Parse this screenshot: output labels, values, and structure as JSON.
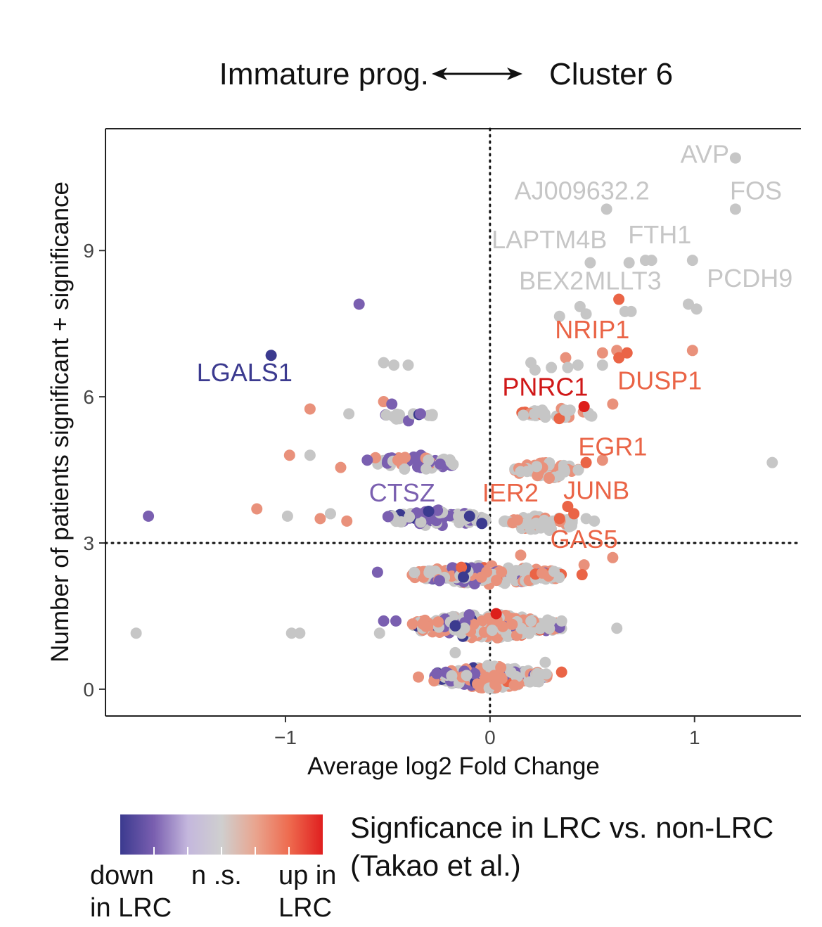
{
  "chart_data": {
    "type": "scatter",
    "header": {
      "left_label": "Immature prog.",
      "right_label": "Cluster 6"
    },
    "xlabel": "Average log2 Fold Change",
    "ylabel": "Number of patients significant + significance",
    "xlim": [
      -1.88,
      1.52
    ],
    "ylim": [
      -0.55,
      11.5
    ],
    "xticks": [
      {
        "value": -1,
        "label": "−1"
      },
      {
        "value": 0,
        "label": "0"
      },
      {
        "value": 1,
        "label": "1"
      }
    ],
    "yticks": [
      {
        "value": 0,
        "label": "0"
      },
      {
        "value": 3,
        "label": "3"
      },
      {
        "value": 6,
        "label": "6"
      },
      {
        "value": 9,
        "label": "9"
      }
    ],
    "threshold_lines": {
      "x": 0,
      "y": 3,
      "style": "dotted"
    },
    "color_legend": {
      "title_line1": "Signficance in LRC vs. non-LRC",
      "title_line2": "(Takao et al.)",
      "gradient": [
        "#3b3a8f",
        "#7a5fb0",
        "#c4b7dd",
        "#cfcfcf",
        "#e9a58f",
        "#ee6b4f",
        "#e01f1f"
      ],
      "labels": {
        "down_line1": "down",
        "down_line2": "in LRC",
        "ns": "n .s.",
        "up_line1": "up in",
        "up_line2": "LRC"
      }
    },
    "color_scale": {
      "down_strong": "#3b3a8f",
      "down": "#7a5fb0",
      "down_weak": "#9b86c9",
      "ns": "#c6c6c6",
      "up_weak": "#e9917b",
      "up": "#ea6446",
      "up_strong": "#dd1f1b"
    },
    "labels": [
      {
        "text": "AVP",
        "x": 1.05,
        "y": 10.8,
        "cls": "ns"
      },
      {
        "text": "AJ009632.2",
        "x": 0.45,
        "y": 10.05,
        "cls": "ns"
      },
      {
        "text": "FOS",
        "x": 1.3,
        "y": 10.05,
        "cls": "ns"
      },
      {
        "text": "LAPTM4B",
        "x": 0.29,
        "y": 9.05,
        "cls": "ns"
      },
      {
        "text": "FTH1",
        "x": 0.83,
        "y": 9.15,
        "cls": "ns"
      },
      {
        "text": "BEX2",
        "x": 0.3,
        "y": 8.2,
        "cls": "ns"
      },
      {
        "text": "MLLT3",
        "x": 0.65,
        "y": 8.2,
        "cls": "ns"
      },
      {
        "text": "PCDH9",
        "x": 1.27,
        "y": 8.25,
        "cls": "ns"
      },
      {
        "text": "NRIP1",
        "x": 0.5,
        "y": 7.2,
        "cls": "up"
      },
      {
        "text": "LGALS1",
        "x": -1.2,
        "y": 6.32,
        "cls": "down_strong"
      },
      {
        "text": "PNRC1",
        "x": 0.27,
        "y": 6.02,
        "cls": "up_strong"
      },
      {
        "text": "DUSP1",
        "x": 0.83,
        "y": 6.15,
        "cls": "up"
      },
      {
        "text": "EGR1",
        "x": 0.6,
        "y": 4.8,
        "cls": "up"
      },
      {
        "text": "CTSZ",
        "x": -0.43,
        "y": 3.85,
        "cls": "down"
      },
      {
        "text": "IER2",
        "x": 0.1,
        "y": 3.85,
        "cls": "up"
      },
      {
        "text": "JUNB",
        "x": 0.52,
        "y": 3.9,
        "cls": "up"
      },
      {
        "text": "GAS5",
        "x": 0.46,
        "y": 2.9,
        "cls": "up"
      }
    ],
    "points": [
      {
        "x": 1.2,
        "y": 10.9,
        "cls": "ns"
      },
      {
        "x": 1.2,
        "y": 9.85,
        "cls": "ns"
      },
      {
        "x": 0.57,
        "y": 9.85,
        "cls": "ns"
      },
      {
        "x": 0.49,
        "y": 8.75,
        "cls": "ns"
      },
      {
        "x": 0.68,
        "y": 8.75,
        "cls": "ns"
      },
      {
        "x": 0.76,
        "y": 8.8,
        "cls": "ns"
      },
      {
        "x": 0.79,
        "y": 8.8,
        "cls": "ns"
      },
      {
        "x": 0.99,
        "y": 8.8,
        "cls": "ns"
      },
      {
        "x": 0.63,
        "y": 8.0,
        "cls": "up"
      },
      {
        "x": 0.34,
        "y": 7.65,
        "cls": "ns"
      },
      {
        "x": 0.44,
        "y": 7.85,
        "cls": "ns"
      },
      {
        "x": 0.47,
        "y": 7.7,
        "cls": "ns"
      },
      {
        "x": 0.66,
        "y": 7.75,
        "cls": "ns"
      },
      {
        "x": 0.69,
        "y": 7.75,
        "cls": "ns"
      },
      {
        "x": 0.97,
        "y": 7.9,
        "cls": "ns"
      },
      {
        "x": 1.01,
        "y": 7.8,
        "cls": "ns"
      },
      {
        "x": -0.64,
        "y": 7.9,
        "cls": "down"
      },
      {
        "x": -1.07,
        "y": 6.85,
        "cls": "down_strong"
      },
      {
        "x": 0.99,
        "y": 6.95,
        "cls": "up_weak"
      },
      {
        "x": 0.62,
        "y": 6.95,
        "cls": "up_weak"
      },
      {
        "x": 0.67,
        "y": 6.9,
        "cls": "up"
      },
      {
        "x": 0.55,
        "y": 6.9,
        "cls": "up_weak"
      },
      {
        "x": 0.37,
        "y": 6.8,
        "cls": "up_weak"
      },
      {
        "x": 0.63,
        "y": 6.8,
        "cls": "up"
      },
      {
        "x": 0.46,
        "y": 5.8,
        "cls": "up_strong"
      },
      {
        "x": 0.6,
        "y": 5.85,
        "cls": "up_weak"
      },
      {
        "x": 0.22,
        "y": 6.55,
        "cls": "ns"
      },
      {
        "x": 0.3,
        "y": 6.6,
        "cls": "ns"
      },
      {
        "x": 0.38,
        "y": 6.6,
        "cls": "ns"
      },
      {
        "x": 0.43,
        "y": 6.65,
        "cls": "ns"
      },
      {
        "x": 0.55,
        "y": 6.65,
        "cls": "ns"
      },
      {
        "x": 0.2,
        "y": 6.7,
        "cls": "ns"
      },
      {
        "x": -0.52,
        "y": 6.7,
        "cls": "ns"
      },
      {
        "x": -0.47,
        "y": 6.65,
        "cls": "ns"
      },
      {
        "x": -0.4,
        "y": 6.65,
        "cls": "ns"
      },
      {
        "x": -0.88,
        "y": 5.75,
        "cls": "up_weak"
      },
      {
        "x": -0.69,
        "y": 5.65,
        "cls": "ns"
      },
      {
        "x": -0.52,
        "y": 5.9,
        "cls": "up_weak"
      },
      {
        "x": -0.48,
        "y": 5.85,
        "cls": "down"
      },
      {
        "x": -0.34,
        "y": 5.65,
        "cls": "down"
      },
      {
        "x": -0.98,
        "y": 4.8,
        "cls": "up_weak"
      },
      {
        "x": -0.88,
        "y": 4.8,
        "cls": "ns"
      },
      {
        "x": -0.73,
        "y": 4.55,
        "cls": "up_weak"
      },
      {
        "x": -0.56,
        "y": 4.75,
        "cls": "up_weak"
      },
      {
        "x": -0.6,
        "y": 4.7,
        "cls": "down"
      },
      {
        "x": -0.45,
        "y": 4.7,
        "cls": "up_weak"
      },
      {
        "x": 1.38,
        "y": 4.65,
        "cls": "ns"
      },
      {
        "x": 0.47,
        "y": 4.65,
        "cls": "up"
      },
      {
        "x": 0.55,
        "y": 4.7,
        "cls": "up_weak"
      },
      {
        "x": -1.67,
        "y": 3.55,
        "cls": "down"
      },
      {
        "x": -1.14,
        "y": 3.7,
        "cls": "up_weak"
      },
      {
        "x": -0.99,
        "y": 3.55,
        "cls": "ns"
      },
      {
        "x": -0.83,
        "y": 3.5,
        "cls": "up_weak"
      },
      {
        "x": -0.78,
        "y": 3.6,
        "cls": "ns"
      },
      {
        "x": -0.7,
        "y": 3.45,
        "cls": "up_weak"
      },
      {
        "x": -0.1,
        "y": 3.55,
        "cls": "down_strong"
      },
      {
        "x": -0.04,
        "y": 3.4,
        "cls": "down_strong"
      },
      {
        "x": -0.3,
        "y": 3.65,
        "cls": "down_strong"
      },
      {
        "x": 0.34,
        "y": 3.5,
        "cls": "up"
      },
      {
        "x": 0.41,
        "y": 3.6,
        "cls": "up"
      },
      {
        "x": 0.47,
        "y": 3.5,
        "cls": "ns"
      },
      {
        "x": 0.51,
        "y": 3.45,
        "cls": "ns"
      },
      {
        "x": 0.38,
        "y": 3.75,
        "cls": "up"
      },
      {
        "x": 0.6,
        "y": 2.7,
        "cls": "up_weak"
      },
      {
        "x": 0.46,
        "y": 2.55,
        "cls": "up_weak"
      },
      {
        "x": 0.45,
        "y": 2.35,
        "cls": "up"
      },
      {
        "x": 0.15,
        "y": 2.75,
        "cls": "up_weak"
      },
      {
        "x": -0.14,
        "y": 2.5,
        "cls": "up"
      },
      {
        "x": -0.13,
        "y": 2.3,
        "cls": "down_strong"
      },
      {
        "x": -0.55,
        "y": 2.4,
        "cls": "down"
      },
      {
        "x": 0.03,
        "y": 1.55,
        "cls": "up_strong"
      },
      {
        "x": -0.52,
        "y": 1.4,
        "cls": "down"
      },
      {
        "x": -0.46,
        "y": 1.4,
        "cls": "down"
      },
      {
        "x": -0.17,
        "y": 1.3,
        "cls": "down_strong"
      },
      {
        "x": 0.35,
        "y": 1.4,
        "cls": "ns"
      },
      {
        "x": 0.62,
        "y": 1.25,
        "cls": "ns"
      },
      {
        "x": -1.73,
        "y": 1.15,
        "cls": "ns"
      },
      {
        "x": -0.97,
        "y": 1.15,
        "cls": "ns"
      },
      {
        "x": -0.93,
        "y": 1.15,
        "cls": "ns"
      },
      {
        "x": -0.54,
        "y": 1.15,
        "cls": "ns"
      },
      {
        "x": -0.17,
        "y": 0.75,
        "cls": "ns"
      },
      {
        "x": 0.35,
        "y": 0.35,
        "cls": "up"
      },
      {
        "x": 0.27,
        "y": 0.55,
        "cls": "ns"
      },
      {
        "x": -0.35,
        "y": 0.25,
        "cls": "up_weak"
      }
    ]
  }
}
